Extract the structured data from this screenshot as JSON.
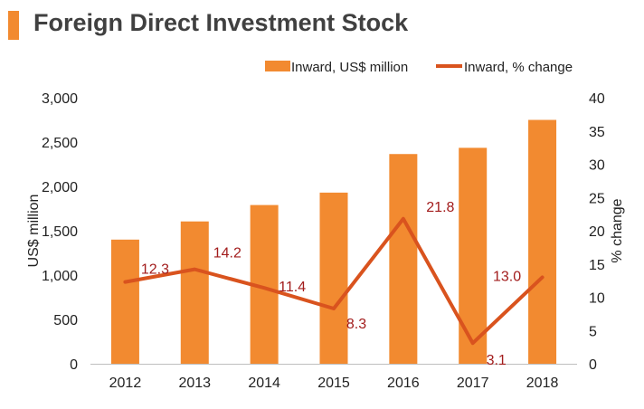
{
  "chart_data": {
    "type": "bar",
    "title": "Foreign Direct Investment Stock",
    "categories": [
      "2012",
      "2013",
      "2014",
      "2015",
      "2016",
      "2017",
      "2018"
    ],
    "series": [
      {
        "name": "Inward, US$ million",
        "type": "bar",
        "axis": "left",
        "values": [
          1400,
          1605,
          1790,
          1930,
          2365,
          2435,
          2750
        ]
      },
      {
        "name": "Inward, % change",
        "type": "line",
        "axis": "right",
        "values": [
          12.3,
          14.2,
          11.4,
          8.3,
          21.8,
          3.1,
          13.0
        ],
        "labels": [
          "12.3",
          "14.2",
          "11.4",
          "8.3",
          "21.8",
          "3.1",
          "13.0"
        ]
      }
    ],
    "ylabel": "US$ million",
    "y2label": "% change",
    "ylim": [
      0,
      3000
    ],
    "y2lim": [
      0,
      40
    ],
    "yticks": [
      "0",
      "500",
      "1,000",
      "1,500",
      "2,000",
      "2,500",
      "3,000"
    ],
    "y2ticks": [
      "0",
      "5",
      "10",
      "15",
      "20",
      "25",
      "30",
      "35",
      "40"
    ],
    "legend_position": "top-right",
    "grid": false
  },
  "colors": {
    "bar": "#F28A30",
    "line": "#D9531E",
    "label": "#A21C1C",
    "title_accent": "#F28A30",
    "title": "#404040",
    "axis_text": "#222222"
  }
}
